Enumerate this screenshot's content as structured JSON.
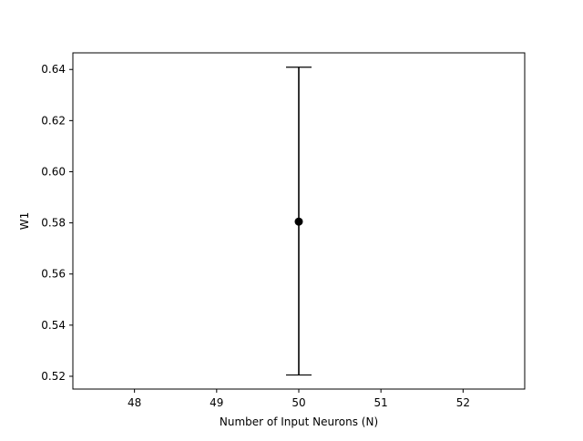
{
  "chart_data": {
    "type": "scatter",
    "title": "",
    "xlabel": "Number of Input Neurons (N)",
    "ylabel": "W1",
    "xlim": [
      47.25,
      52.75
    ],
    "ylim": [
      0.515,
      0.6465
    ],
    "xticks": [
      48,
      49,
      50,
      51,
      52
    ],
    "xtick_labels": [
      "48",
      "49",
      "50",
      "51",
      "52"
    ],
    "yticks": [
      0.52,
      0.54,
      0.56,
      0.58,
      0.6,
      0.62,
      0.64
    ],
    "ytick_labels": [
      "0.52",
      "0.54",
      "0.56",
      "0.58",
      "0.60",
      "0.62",
      "0.64"
    ],
    "grid": false,
    "legend": "none",
    "series": [
      {
        "points": [
          {
            "x": 50,
            "y": 0.5805,
            "yerr_low": 0.5205,
            "yerr_high": 0.6409
          }
        ],
        "color": "#000000",
        "marker": "circle",
        "errorbar_caps": true
      }
    ]
  }
}
